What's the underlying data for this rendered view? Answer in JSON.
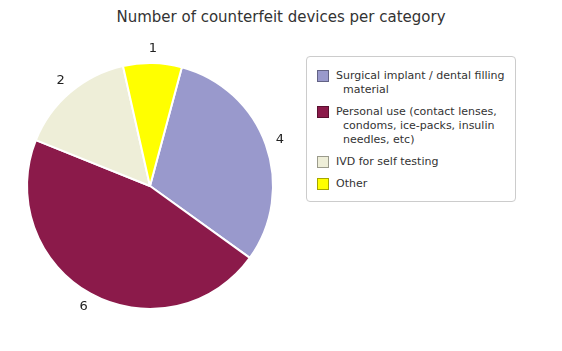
{
  "chart_data": {
    "type": "pie",
    "title": "Number of counterfeit devices per category",
    "categories": [
      "Surgical implant / dental filling\n  material",
      "Personal use (contact lenses,\n  condoms, ice-packs, insulin\n  needles, etc)",
      "IVD for self testing",
      "Other"
    ],
    "values": [
      4,
      6,
      2,
      1
    ],
    "colors": [
      "#9999cc",
      "#8b1a4a",
      "#eeeed8",
      "#ffff00"
    ],
    "data_labels": true,
    "legend": "right"
  }
}
